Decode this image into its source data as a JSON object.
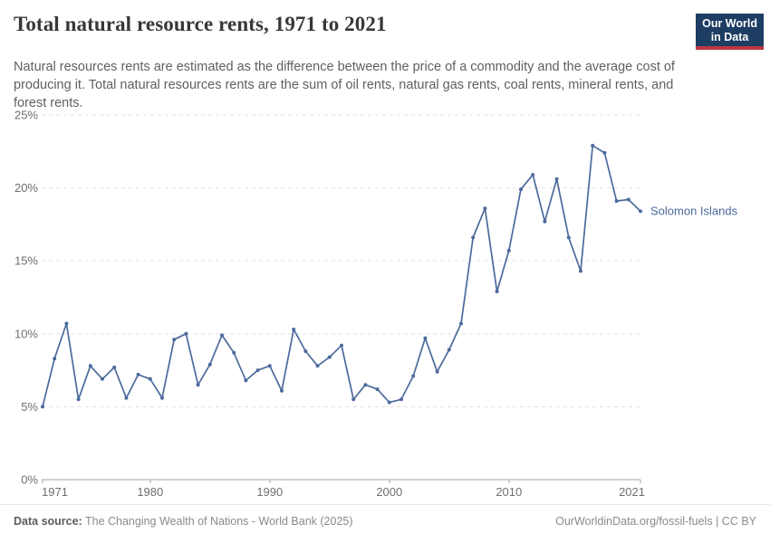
{
  "header": {
    "title": "Total natural resource rents, 1971 to 2021",
    "logo_line1": "Our World",
    "logo_line2": "in Data"
  },
  "subtitle": "Natural resources rents are estimated as the difference between the price of a commodity and the average cost of producing it. Total natural resources rents are the sum of oil rents, natural gas rents, coal rents, mineral rents, and forest rents.",
  "chart_data": {
    "type": "line",
    "title": "Total natural resource rents, 1971 to 2021",
    "xlabel": "",
    "ylabel": "",
    "y_unit": "%",
    "ylim": [
      0,
      25
    ],
    "yticks": [
      0,
      5,
      10,
      15,
      20,
      25
    ],
    "xticks": [
      1971,
      1980,
      1990,
      2000,
      2010,
      2021
    ],
    "xlim": [
      1971,
      2021
    ],
    "grid": "horizontal-dashed",
    "legend_position": "end-of-line-label",
    "series": [
      {
        "name": "Solomon Islands",
        "color": "#4c6a9c",
        "years": [
          1971,
          1972,
          1973,
          1974,
          1975,
          1976,
          1977,
          1978,
          1979,
          1980,
          1981,
          1982,
          1983,
          1984,
          1985,
          1986,
          1987,
          1988,
          1989,
          1990,
          1991,
          1992,
          1993,
          1994,
          1995,
          1996,
          1997,
          1998,
          1999,
          2000,
          2001,
          2002,
          2003,
          2004,
          2005,
          2006,
          2007,
          2008,
          2009,
          2010,
          2011,
          2012,
          2013,
          2014,
          2015,
          2016,
          2017,
          2018,
          2019,
          2020,
          2021
        ],
        "values": [
          5.0,
          8.3,
          10.7,
          5.5,
          7.8,
          6.9,
          7.7,
          5.6,
          7.2,
          6.9,
          5.6,
          9.6,
          10.0,
          6.5,
          7.9,
          9.9,
          8.7,
          6.8,
          7.5,
          7.8,
          6.1,
          10.3,
          8.8,
          7.8,
          8.4,
          9.2,
          5.5,
          6.5,
          6.2,
          5.3,
          5.5,
          7.1,
          9.7,
          7.4,
          8.9,
          10.7,
          16.6,
          18.6,
          12.9,
          15.7,
          19.9,
          20.9,
          17.7,
          20.6,
          16.6,
          14.3,
          22.9,
          22.4,
          19.1,
          19.2,
          18.4
        ]
      }
    ]
  },
  "theme": {
    "line_color": "#4c6a9c",
    "grid_color": "#e2e2e2",
    "axis_color": "#a3a3a3",
    "tick_label_color": "#6f6f6f",
    "logo_bg": "#1d3d63",
    "logo_accent": "#bf3641"
  },
  "footer": {
    "datasource_label": "Data source:",
    "datasource_text": "The Changing Wealth of Nations - World Bank (2025)",
    "link_text": "OurWorldinData.org/fossil-fuels",
    "separator": "|",
    "license_text": "CC BY"
  }
}
